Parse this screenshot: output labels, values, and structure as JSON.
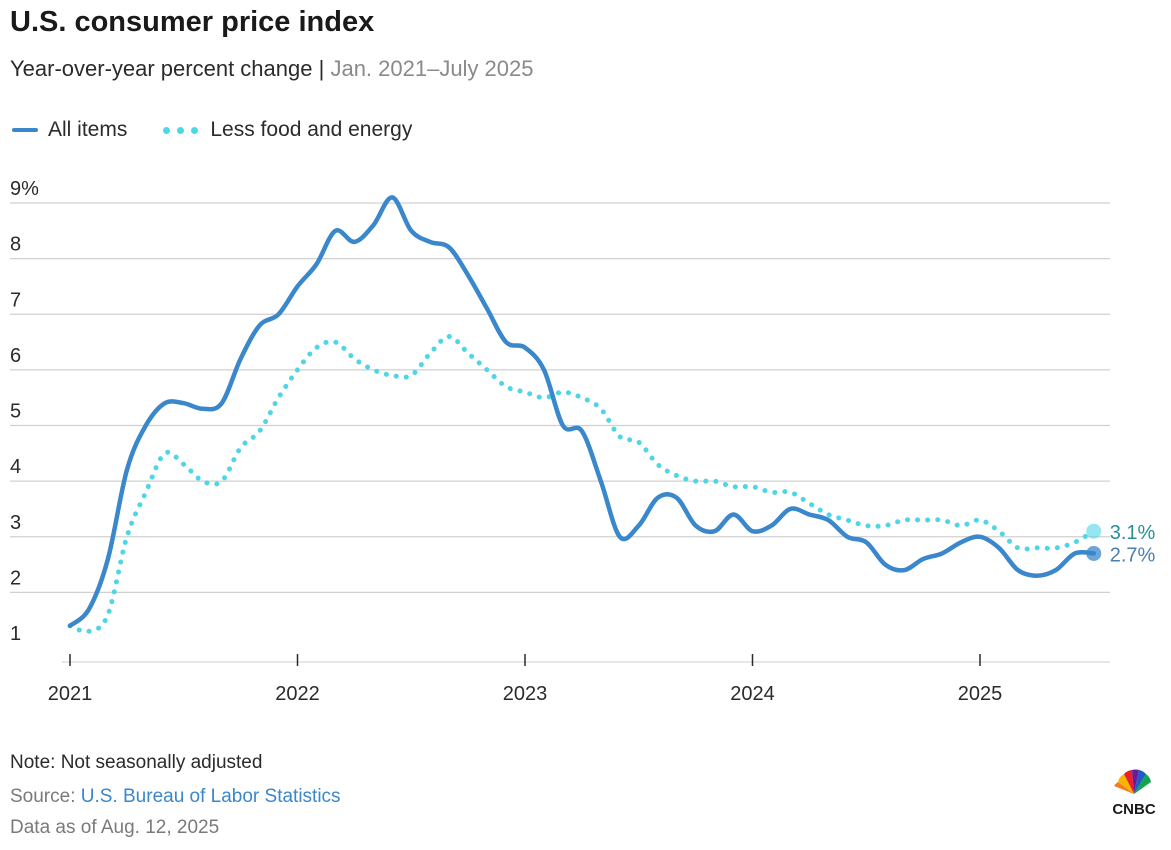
{
  "header": {
    "title": "U.S. consumer price index",
    "subtitle_main": "Year-over-year percent change",
    "subtitle_sep": "|",
    "subtitle_range": "Jan. 2021–July 2025"
  },
  "footer": {
    "note": "Note: Not seasonally adjusted",
    "source_prefix": "Source: ",
    "source_link": "U.S. Bureau of Labor Statistics",
    "as_of": "Data as of Aug. 12, 2025",
    "logo_text": "CNBC"
  },
  "colors": {
    "all_items": "#3a87cc",
    "core": "#4fd6e6",
    "grid": "#d0d0d0",
    "end_label_all": "#4a7fb0",
    "end_label_core": "#2a8e9a"
  },
  "chart_data": {
    "type": "line",
    "x_start": "2021-01",
    "x_end": "2025-07",
    "xticks": [
      "2021",
      "2022",
      "2023",
      "2024",
      "2025"
    ],
    "ylim": [
      1,
      9
    ],
    "yticks": [
      "1",
      "2",
      "3",
      "4",
      "5",
      "6",
      "7",
      "8",
      "9%"
    ],
    "grid": true,
    "legend_position": "top-left",
    "series": [
      {
        "name": "All items",
        "style": "solid",
        "end_label": "2.7%",
        "values": [
          1.4,
          1.7,
          2.6,
          4.2,
          5.0,
          5.4,
          5.4,
          5.3,
          5.4,
          6.2,
          6.8,
          7.0,
          7.5,
          7.9,
          8.5,
          8.3,
          8.6,
          9.1,
          8.5,
          8.3,
          8.2,
          7.7,
          7.1,
          6.5,
          6.4,
          6.0,
          5.0,
          4.9,
          4.0,
          3.0,
          3.2,
          3.7,
          3.7,
          3.2,
          3.1,
          3.4,
          3.1,
          3.2,
          3.5,
          3.4,
          3.3,
          3.0,
          2.9,
          2.5,
          2.4,
          2.6,
          2.7,
          2.9,
          3.0,
          2.8,
          2.4,
          2.3,
          2.4,
          2.7,
          2.7
        ]
      },
      {
        "name": "Less food and energy",
        "style": "dotted",
        "end_label": "3.1%",
        "values": [
          1.4,
          1.3,
          1.6,
          3.0,
          3.8,
          4.5,
          4.3,
          4.0,
          4.0,
          4.6,
          4.9,
          5.5,
          6.0,
          6.4,
          6.5,
          6.2,
          6.0,
          5.9,
          5.9,
          6.3,
          6.6,
          6.3,
          6.0,
          5.7,
          5.6,
          5.5,
          5.6,
          5.5,
          5.3,
          4.8,
          4.7,
          4.3,
          4.1,
          4.0,
          4.0,
          3.9,
          3.9,
          3.8,
          3.8,
          3.6,
          3.4,
          3.3,
          3.2,
          3.2,
          3.3,
          3.3,
          3.3,
          3.2,
          3.3,
          3.1,
          2.8,
          2.8,
          2.8,
          2.9,
          3.1
        ]
      }
    ]
  }
}
